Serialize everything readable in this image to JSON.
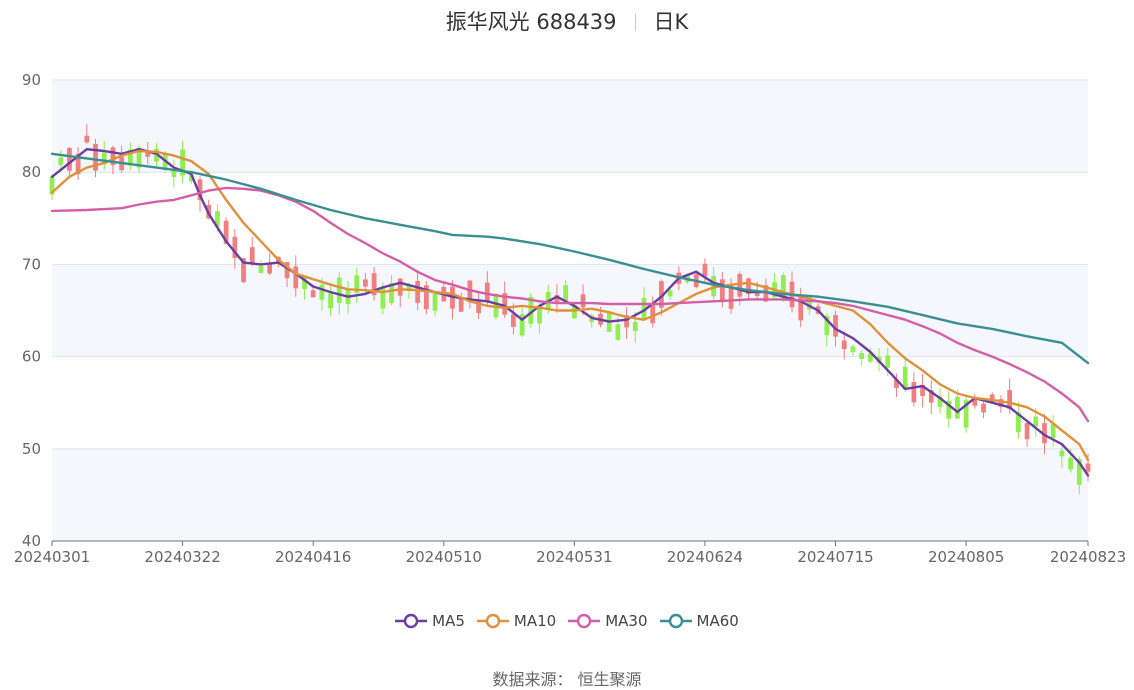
{
  "header": {
    "stock_name": "振华风光 688439",
    "period": "日K"
  },
  "source_note": "数据来源： 恒生聚源",
  "colors": {
    "up": "#f08080",
    "down": "#90ee50",
    "MA5": "#6a3fa0",
    "MA10": "#e0913a",
    "MA30": "#d35fa6",
    "MA60": "#3a8f92",
    "band": "#f5f7fc",
    "grid": "#dfe3ee"
  },
  "chart_data": {
    "type": "candlestick",
    "title": "振华风光 688439",
    "subtitle": "日K",
    "ylim": [
      40,
      90
    ],
    "yticks": [
      40,
      50,
      60,
      70,
      80,
      90
    ],
    "x_labels": [
      "20240301",
      "20240322",
      "20240416",
      "20240510",
      "20240531",
      "20240624",
      "20240715",
      "20240805",
      "20240823"
    ],
    "x_label_positions": [
      0,
      15,
      30,
      45,
      60,
      75,
      90,
      105,
      119
    ],
    "trading_days": 120,
    "legend": [
      "MA5",
      "MA10",
      "MA30",
      "MA60"
    ],
    "legend_position": "bottom",
    "ma_series": [
      {
        "name": "MA5",
        "points": [
          [
            0,
            79.5
          ],
          [
            2,
            81.0
          ],
          [
            4,
            82.5
          ],
          [
            6,
            82.3
          ],
          [
            8,
            82.0
          ],
          [
            10,
            82.5
          ],
          [
            12,
            82.0
          ],
          [
            14,
            80.5
          ],
          [
            16,
            79.8
          ],
          [
            17,
            77.5
          ],
          [
            18,
            75.5
          ],
          [
            20,
            72.5
          ],
          [
            22,
            70.2
          ],
          [
            24,
            70.0
          ],
          [
            26,
            70.2
          ],
          [
            28,
            69.0
          ],
          [
            30,
            67.6
          ],
          [
            32,
            67.0
          ],
          [
            34,
            66.5
          ],
          [
            36,
            66.8
          ],
          [
            38,
            67.5
          ],
          [
            40,
            68.0
          ],
          [
            42,
            67.5
          ],
          [
            44,
            67.0
          ],
          [
            46,
            66.5
          ],
          [
            48,
            66.2
          ],
          [
            50,
            66.0
          ],
          [
            52,
            65.5
          ],
          [
            54,
            64.0
          ],
          [
            56,
            65.5
          ],
          [
            58,
            66.5
          ],
          [
            60,
            65.5
          ],
          [
            62,
            64.2
          ],
          [
            64,
            63.8
          ],
          [
            66,
            64.0
          ],
          [
            68,
            65.0
          ],
          [
            70,
            66.5
          ],
          [
            72,
            68.5
          ],
          [
            74,
            69.2
          ],
          [
            76,
            68.0
          ],
          [
            78,
            67.5
          ],
          [
            80,
            67.0
          ],
          [
            82,
            67.0
          ],
          [
            84,
            66.5
          ],
          [
            86,
            66.0
          ],
          [
            88,
            65.0
          ],
          [
            90,
            63.0
          ],
          [
            92,
            62.0
          ],
          [
            94,
            60.5
          ],
          [
            96,
            58.5
          ],
          [
            98,
            56.5
          ],
          [
            100,
            56.8
          ],
          [
            102,
            55.5
          ],
          [
            104,
            54.0
          ],
          [
            106,
            55.5
          ],
          [
            108,
            55.0
          ],
          [
            110,
            54.5
          ],
          [
            112,
            53.0
          ],
          [
            114,
            51.5
          ],
          [
            116,
            50.5
          ],
          [
            118,
            48.5
          ],
          [
            119,
            47.1
          ]
        ]
      },
      {
        "name": "MA10",
        "points": [
          [
            0,
            77.8
          ],
          [
            2,
            79.5
          ],
          [
            4,
            80.5
          ],
          [
            6,
            81.0
          ],
          [
            8,
            81.8
          ],
          [
            10,
            82.3
          ],
          [
            12,
            82.2
          ],
          [
            14,
            81.8
          ],
          [
            16,
            81.2
          ],
          [
            18,
            79.8
          ],
          [
            20,
            77.0
          ],
          [
            22,
            74.5
          ],
          [
            24,
            72.5
          ],
          [
            26,
            70.5
          ],
          [
            28,
            69.0
          ],
          [
            30,
            68.4
          ],
          [
            32,
            67.8
          ],
          [
            34,
            67.3
          ],
          [
            36,
            67.2
          ],
          [
            38,
            67.0
          ],
          [
            40,
            67.3
          ],
          [
            42,
            67.2
          ],
          [
            44,
            67.0
          ],
          [
            46,
            66.8
          ],
          [
            48,
            66.0
          ],
          [
            50,
            65.5
          ],
          [
            52,
            65.3
          ],
          [
            54,
            65.5
          ],
          [
            56,
            65.3
          ],
          [
            58,
            65.0
          ],
          [
            60,
            65.0
          ],
          [
            62,
            65.2
          ],
          [
            64,
            64.8
          ],
          [
            66,
            64.3
          ],
          [
            68,
            64.0
          ],
          [
            70,
            64.8
          ],
          [
            72,
            65.8
          ],
          [
            74,
            66.8
          ],
          [
            76,
            67.5
          ],
          [
            78,
            67.8
          ],
          [
            80,
            68.0
          ],
          [
            82,
            67.5
          ],
          [
            84,
            67.0
          ],
          [
            86,
            66.5
          ],
          [
            88,
            66.0
          ],
          [
            90,
            65.5
          ],
          [
            92,
            65.0
          ],
          [
            94,
            63.5
          ],
          [
            96,
            61.5
          ],
          [
            98,
            59.8
          ],
          [
            100,
            58.5
          ],
          [
            102,
            57.0
          ],
          [
            104,
            56.0
          ],
          [
            106,
            55.5
          ],
          [
            108,
            55.3
          ],
          [
            110,
            55.0
          ],
          [
            112,
            54.5
          ],
          [
            114,
            53.5
          ],
          [
            116,
            52.0
          ],
          [
            118,
            50.5
          ],
          [
            119,
            48.8
          ]
        ]
      },
      {
        "name": "MA30",
        "points": [
          [
            0,
            75.8
          ],
          [
            4,
            75.9
          ],
          [
            8,
            76.1
          ],
          [
            10,
            76.5
          ],
          [
            12,
            76.8
          ],
          [
            14,
            77.0
          ],
          [
            16,
            77.5
          ],
          [
            18,
            78.0
          ],
          [
            20,
            78.3
          ],
          [
            22,
            78.2
          ],
          [
            24,
            78.0
          ],
          [
            26,
            77.5
          ],
          [
            28,
            76.8
          ],
          [
            30,
            75.8
          ],
          [
            32,
            74.5
          ],
          [
            34,
            73.3
          ],
          [
            36,
            72.3
          ],
          [
            38,
            71.2
          ],
          [
            40,
            70.3
          ],
          [
            42,
            69.2
          ],
          [
            44,
            68.3
          ],
          [
            46,
            67.8
          ],
          [
            48,
            67.2
          ],
          [
            50,
            66.8
          ],
          [
            52,
            66.5
          ],
          [
            54,
            66.3
          ],
          [
            56,
            66.0
          ],
          [
            58,
            65.8
          ],
          [
            60,
            65.8
          ],
          [
            62,
            65.8
          ],
          [
            64,
            65.7
          ],
          [
            66,
            65.7
          ],
          [
            68,
            65.7
          ],
          [
            70,
            65.7
          ],
          [
            72,
            65.8
          ],
          [
            74,
            65.9
          ],
          [
            76,
            66.0
          ],
          [
            78,
            66.1
          ],
          [
            80,
            66.2
          ],
          [
            82,
            66.2
          ],
          [
            84,
            66.2
          ],
          [
            86,
            66.1
          ],
          [
            88,
            66.0
          ],
          [
            90,
            65.8
          ],
          [
            92,
            65.5
          ],
          [
            94,
            65.0
          ],
          [
            96,
            64.5
          ],
          [
            98,
            64.0
          ],
          [
            100,
            63.3
          ],
          [
            102,
            62.5
          ],
          [
            104,
            61.5
          ],
          [
            106,
            60.7
          ],
          [
            108,
            60.0
          ],
          [
            110,
            59.2
          ],
          [
            112,
            58.3
          ],
          [
            114,
            57.3
          ],
          [
            116,
            56.0
          ],
          [
            118,
            54.5
          ],
          [
            119,
            53.0
          ]
        ]
      },
      {
        "name": "MA60",
        "points": [
          [
            0,
            82.0
          ],
          [
            4,
            81.5
          ],
          [
            8,
            81.0
          ],
          [
            12,
            80.5
          ],
          [
            16,
            80.0
          ],
          [
            20,
            79.2
          ],
          [
            24,
            78.2
          ],
          [
            28,
            77.0
          ],
          [
            32,
            75.9
          ],
          [
            36,
            75.0
          ],
          [
            40,
            74.3
          ],
          [
            44,
            73.6
          ],
          [
            46,
            73.2
          ],
          [
            48,
            73.1
          ],
          [
            50,
            73.0
          ],
          [
            52,
            72.8
          ],
          [
            56,
            72.2
          ],
          [
            60,
            71.4
          ],
          [
            64,
            70.5
          ],
          [
            68,
            69.5
          ],
          [
            72,
            68.6
          ],
          [
            76,
            67.8
          ],
          [
            80,
            67.2
          ],
          [
            84,
            66.8
          ],
          [
            88,
            66.5
          ],
          [
            92,
            66.0
          ],
          [
            96,
            65.4
          ],
          [
            100,
            64.5
          ],
          [
            104,
            63.6
          ],
          [
            108,
            63.0
          ],
          [
            112,
            62.2
          ],
          [
            116,
            61.5
          ],
          [
            119,
            59.3
          ]
        ]
      }
    ]
  }
}
